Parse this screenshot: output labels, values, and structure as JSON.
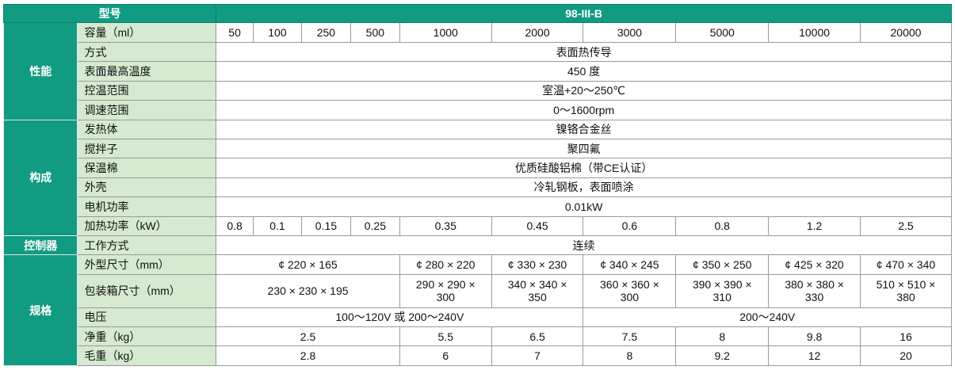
{
  "header": {
    "model_label": "型号",
    "model_value": "98-III-B"
  },
  "groups": {
    "performance": "性能",
    "construction": "构成",
    "controller": "控制器",
    "specs": "规格"
  },
  "rows": {
    "capacity": {
      "label": "容量（ml）",
      "values": [
        "50",
        "100",
        "250",
        "500",
        "1000",
        "2000",
        "3000",
        "5000",
        "10000",
        "20000"
      ]
    },
    "method": {
      "label": "方式",
      "value": "表面热传导"
    },
    "max_temp": {
      "label": "表面最高温度",
      "value": "450 度"
    },
    "temp_range": {
      "label": "控温范围",
      "value": "室温+20～250℃"
    },
    "speed_range": {
      "label": "调速范围",
      "value": "0～1600rpm"
    },
    "heater": {
      "label": "发热体",
      "value": "镍铬合金丝"
    },
    "stirrer": {
      "label": "搅拌子",
      "value": "聚四氟"
    },
    "insulation": {
      "label": "保温棉",
      "value": "优质硅酸铝棉（带CE认证）"
    },
    "shell": {
      "label": "外壳",
      "value": "冷轧钢板，表面喷涂"
    },
    "motor_power": {
      "label": "电机功率",
      "value": "0.01kW"
    },
    "heating_power": {
      "label": "加热功率（kW）",
      "values": [
        "0.8",
        "0.1",
        "0.15",
        "0.25",
        "0.35",
        "0.45",
        "0.6",
        "0.8",
        "1.2",
        "2.5"
      ]
    },
    "work_mode": {
      "label": "工作方式",
      "value": "连续"
    },
    "outer_size": {
      "label": "外型尺寸（mm）",
      "values": [
        "¢ 220 × 165",
        "¢ 280 × 220",
        "¢ 330 × 230",
        "¢ 340 × 245",
        "¢ 350 × 250",
        "¢ 425 × 320",
        "¢ 470 × 340"
      ]
    },
    "package_size": {
      "label": "包装箱尺寸（mm）",
      "values": [
        [
          "230 × 230 × 195",
          ""
        ],
        [
          "290 × 290 ×",
          "300"
        ],
        [
          "340 × 340 ×",
          "350"
        ],
        [
          "360 × 360 ×",
          "300"
        ],
        [
          "390 × 390 ×",
          "310"
        ],
        [
          "380 × 380 ×",
          "330"
        ],
        [
          "510 × 510 ×",
          "380"
        ]
      ]
    },
    "voltage": {
      "label": "电压",
      "values": [
        "100～120V 或 200～240V",
        "200～240V"
      ]
    },
    "net_weight": {
      "label": "净重（kg）",
      "values": [
        "2.5",
        "5.5",
        "6.5",
        "7.5",
        "8",
        "9.8",
        "16"
      ]
    },
    "gross_weight": {
      "label": "毛重（kg）",
      "values": [
        "2.8",
        "6",
        "7",
        "8",
        "9.2",
        "12",
        "20"
      ]
    }
  }
}
